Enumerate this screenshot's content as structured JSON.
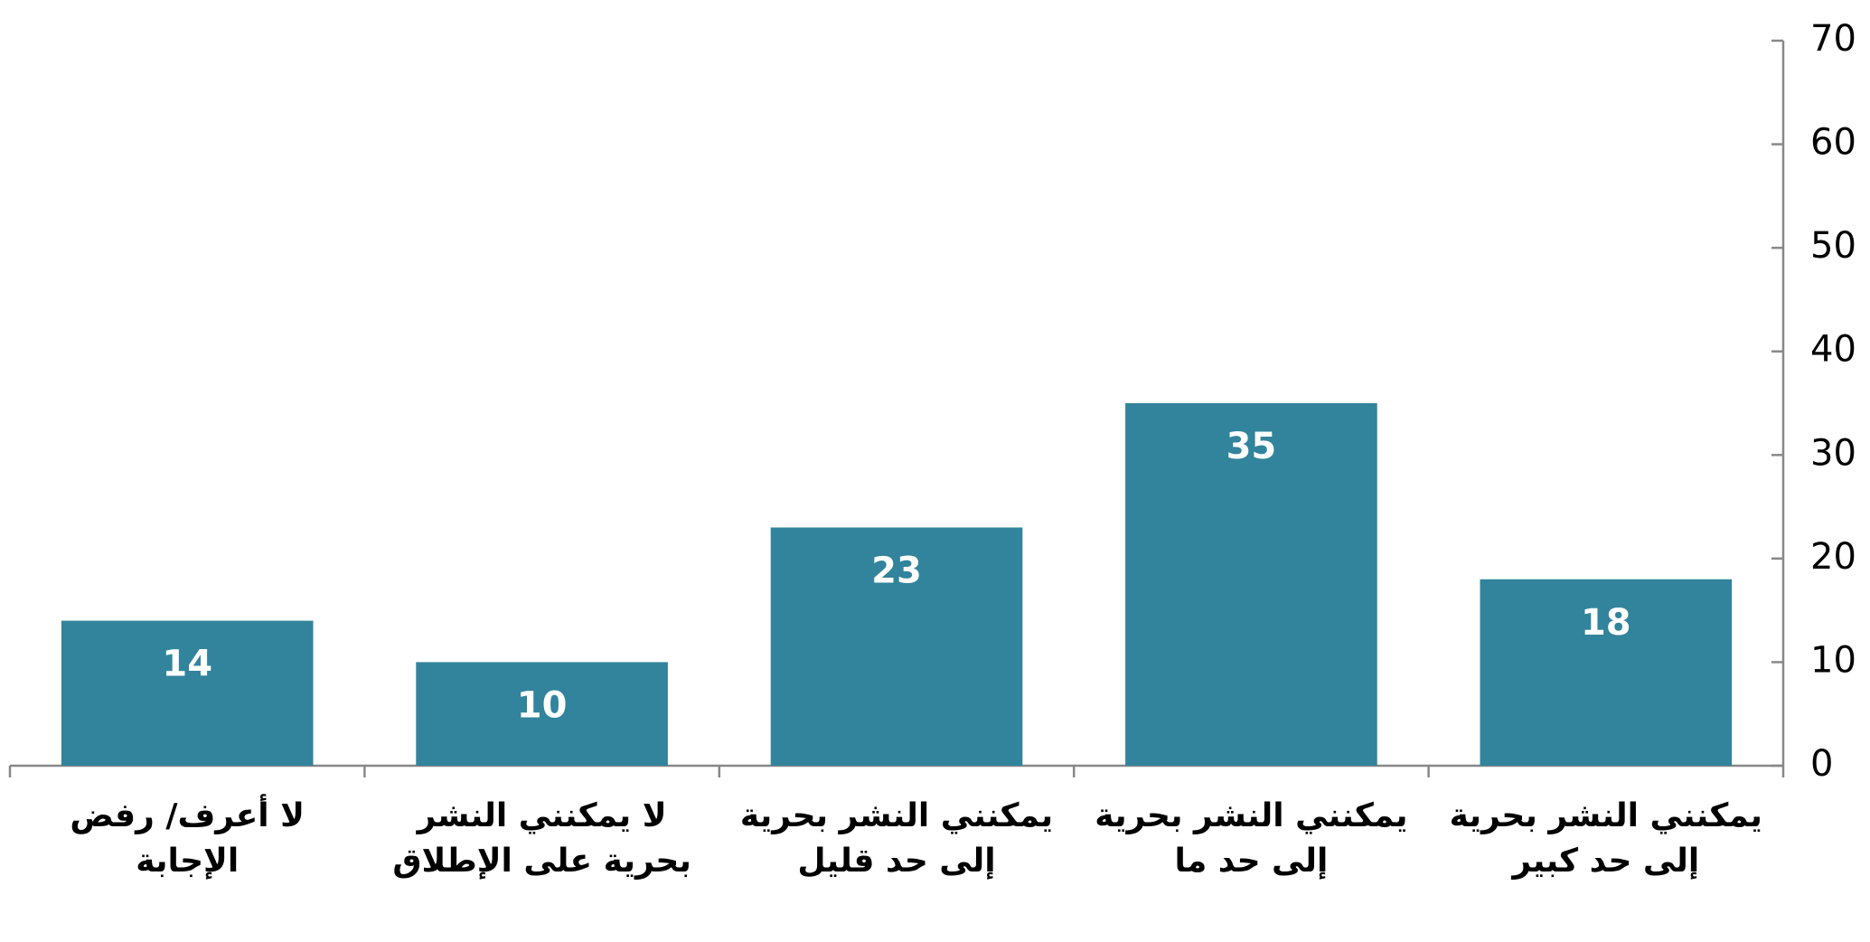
{
  "chart_data": {
    "type": "bar",
    "categories": [
      "يمكنني النشر بحرية إلى حد كبير",
      "يمكنني النشر بحرية إلى حد ما",
      "يمكنني النشر بحرية إلى حد قليل",
      "لا يمكنني النشر بحرية على الإطلاق",
      "لا أعرف/ رفض الإجابة"
    ],
    "values": [
      18,
      35,
      23,
      10,
      14
    ],
    "color": "#31849b",
    "ylim": [
      0,
      70
    ],
    "yticks": [
      0,
      10,
      20,
      30,
      40,
      50,
      60,
      70
    ],
    "x_reversed": true,
    "y_axis_side": "right",
    "grid": false
  }
}
